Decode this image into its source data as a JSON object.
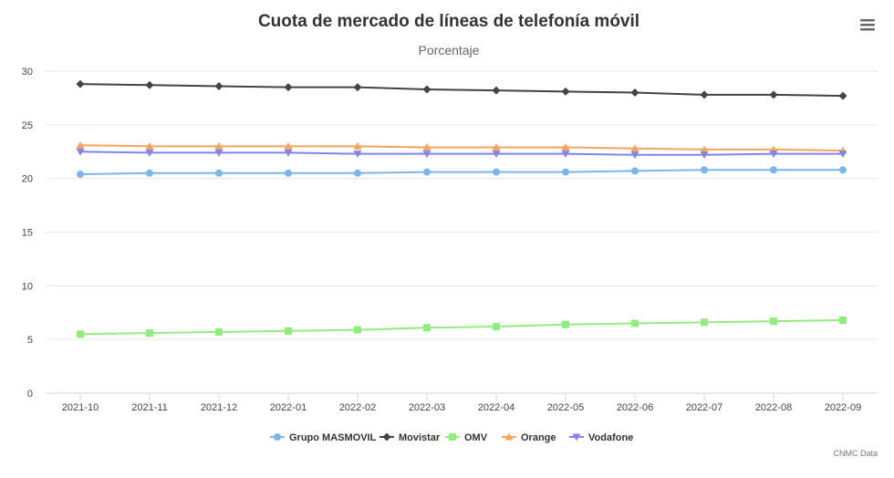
{
  "chart_data": {
    "type": "line",
    "title": "Cuota de mercado de líneas de telefonía móvil",
    "subtitle": "Porcentaje",
    "categories": [
      "2021-10",
      "2021-11",
      "2021-12",
      "2022-01",
      "2022-02",
      "2022-03",
      "2022-04",
      "2022-05",
      "2022-06",
      "2022-07",
      "2022-08",
      "2022-09"
    ],
    "ylim": [
      0,
      30
    ],
    "yticks": [
      0,
      5,
      10,
      15,
      20,
      25,
      30
    ],
    "grid": true,
    "legend_position": "bottom",
    "series": [
      {
        "name": "Grupo MASMOVIL",
        "color": "#7cb5ec",
        "marker": "circle",
        "values": [
          20.4,
          20.5,
          20.5,
          20.5,
          20.5,
          20.6,
          20.6,
          20.6,
          20.7,
          20.8,
          20.8,
          20.8
        ]
      },
      {
        "name": "Movistar",
        "color": "#434348",
        "marker": "diamond",
        "values": [
          28.8,
          28.7,
          28.6,
          28.5,
          28.5,
          28.3,
          28.2,
          28.1,
          28.0,
          27.8,
          27.8,
          27.7
        ]
      },
      {
        "name": "OMV",
        "color": "#90ed7d",
        "marker": "square",
        "values": [
          5.5,
          5.6,
          5.7,
          5.8,
          5.9,
          6.1,
          6.2,
          6.4,
          6.5,
          6.6,
          6.7,
          6.8
        ]
      },
      {
        "name": "Orange",
        "color": "#f7a35c",
        "marker": "triangle",
        "values": [
          23.1,
          23.0,
          23.0,
          23.0,
          23.0,
          22.9,
          22.9,
          22.9,
          22.8,
          22.7,
          22.7,
          22.6
        ]
      },
      {
        "name": "Vodafone",
        "color": "#8085e9",
        "marker": "triangle-down",
        "values": [
          22.5,
          22.4,
          22.4,
          22.4,
          22.3,
          22.3,
          22.3,
          22.3,
          22.2,
          22.2,
          22.3,
          22.3
        ]
      }
    ]
  },
  "credits": "CNMC Data",
  "menu_icon": "hamburger-menu-icon"
}
